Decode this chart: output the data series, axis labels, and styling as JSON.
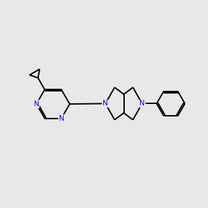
{
  "background_color": "#e8e8e8",
  "bond_color": "#000000",
  "nitrogen_color": "#0000ee",
  "line_width": 1.4,
  "figsize": [
    3.0,
    3.0
  ],
  "dpi": 100,
  "xlim": [
    0,
    10
  ],
  "ylim": [
    0,
    10
  ]
}
